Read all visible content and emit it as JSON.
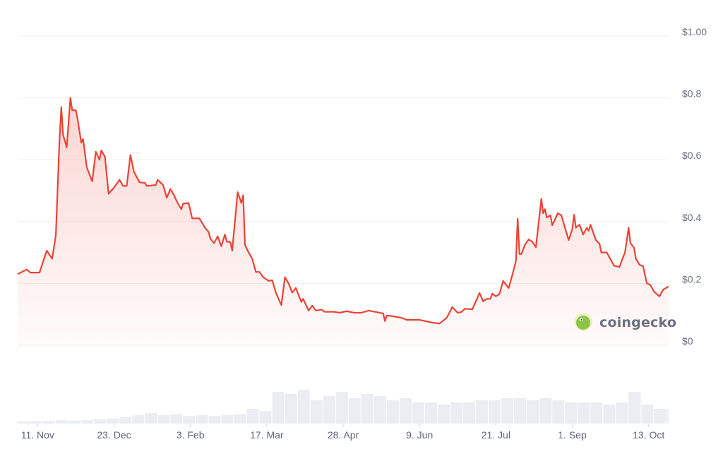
{
  "brand": {
    "name": "coingecko",
    "icon": "coingecko-gecko-logo"
  },
  "colors": {
    "line": "#ea4337",
    "fill": "#f7b3ad",
    "grid": "#eeeff2",
    "volume": "#ebedf2",
    "text": "#6b7280",
    "logo_green": "#8dc647",
    "logo_ring": "#f2f0c8"
  },
  "chart_data": {
    "type": "area",
    "title": "",
    "xlabel": "",
    "ylabel": "",
    "ylim": [
      0,
      1.0
    ],
    "xlim": [
      "2024-10-31",
      "2025-10-24"
    ],
    "grid": true,
    "legend": "none",
    "y_ticks": [
      {
        "value": 0,
        "label": "$0"
      },
      {
        "value": 0.2,
        "label": "$0.2"
      },
      {
        "value": 0.4,
        "label": "$0.4"
      },
      {
        "value": 0.6,
        "label": "$0.6"
      },
      {
        "value": 0.8,
        "label": "$0.8"
      },
      {
        "value": 1.0,
        "label": "$1.00"
      }
    ],
    "x_ticks": [
      {
        "date": "2024-11-11",
        "label": "11. Nov"
      },
      {
        "date": "2024-12-23",
        "label": "23. Dec"
      },
      {
        "date": "2025-02-03",
        "label": "3. Feb"
      },
      {
        "date": "2025-03-17",
        "label": "17. Mar"
      },
      {
        "date": "2025-04-28",
        "label": "28. Apr"
      },
      {
        "date": "2025-06-09",
        "label": "9. Jun"
      },
      {
        "date": "2025-07-21",
        "label": "21. Jul"
      },
      {
        "date": "2025-09-01",
        "label": "1. Sep"
      },
      {
        "date": "2025-10-13",
        "label": "13. Oct"
      }
    ],
    "price": [
      [
        "2024-10-31",
        0.23
      ],
      [
        "2024-11-05",
        0.245
      ],
      [
        "2024-11-07",
        0.235
      ],
      [
        "2024-11-12",
        0.235
      ],
      [
        "2024-11-16",
        0.306
      ],
      [
        "2024-11-19",
        0.28
      ],
      [
        "2024-11-21",
        0.356
      ],
      [
        "2024-11-23",
        0.66
      ],
      [
        "2024-11-24",
        0.77
      ],
      [
        "2024-11-25",
        0.68
      ],
      [
        "2024-11-27",
        0.64
      ],
      [
        "2024-11-29",
        0.8
      ],
      [
        "2024-11-30",
        0.76
      ],
      [
        "2024-12-02",
        0.76
      ],
      [
        "2024-12-03",
        0.73
      ],
      [
        "2024-12-05",
        0.655
      ],
      [
        "2024-12-06",
        0.667
      ],
      [
        "2024-12-08",
        0.575
      ],
      [
        "2024-12-11",
        0.53
      ],
      [
        "2024-12-13",
        0.626
      ],
      [
        "2024-12-15",
        0.6
      ],
      [
        "2024-12-16",
        0.63
      ],
      [
        "2024-12-18",
        0.61
      ],
      [
        "2024-12-20",
        0.49
      ],
      [
        "2024-12-23",
        0.51
      ],
      [
        "2024-12-26",
        0.535
      ],
      [
        "2024-12-28",
        0.515
      ],
      [
        "2024-12-30",
        0.515
      ],
      [
        "2025-01-01",
        0.615
      ],
      [
        "2025-01-03",
        0.56
      ],
      [
        "2025-01-06",
        0.527
      ],
      [
        "2025-01-09",
        0.525
      ],
      [
        "2025-01-10",
        0.515
      ],
      [
        "2025-01-15",
        0.518
      ],
      [
        "2025-01-16",
        0.535
      ],
      [
        "2025-01-19",
        0.518
      ],
      [
        "2025-01-21",
        0.477
      ],
      [
        "2025-01-23",
        0.505
      ],
      [
        "2025-01-25",
        0.485
      ],
      [
        "2025-01-27",
        0.46
      ],
      [
        "2025-01-29",
        0.44
      ],
      [
        "2025-01-30",
        0.458
      ],
      [
        "2025-02-02",
        0.46
      ],
      [
        "2025-02-04",
        0.41
      ],
      [
        "2025-02-08",
        0.41
      ],
      [
        "2025-02-11",
        0.38
      ],
      [
        "2025-02-13",
        0.367
      ],
      [
        "2025-02-14",
        0.345
      ],
      [
        "2025-02-16",
        0.33
      ],
      [
        "2025-02-18",
        0.352
      ],
      [
        "2025-02-20",
        0.32
      ],
      [
        "2025-02-22",
        0.358
      ],
      [
        "2025-02-23",
        0.335
      ],
      [
        "2025-02-25",
        0.333
      ],
      [
        "2025-02-26",
        0.306
      ],
      [
        "2025-03-01",
        0.495
      ],
      [
        "2025-03-03",
        0.46
      ],
      [
        "2025-03-04",
        0.485
      ],
      [
        "2025-03-05",
        0.325
      ],
      [
        "2025-03-07",
        0.3
      ],
      [
        "2025-03-09",
        0.28
      ],
      [
        "2025-03-11",
        0.237
      ],
      [
        "2025-03-13",
        0.237
      ],
      [
        "2025-03-15",
        0.22
      ],
      [
        "2025-03-18",
        0.208
      ],
      [
        "2025-03-20",
        0.21
      ],
      [
        "2025-03-22",
        0.17
      ],
      [
        "2025-03-25",
        0.13
      ],
      [
        "2025-03-27",
        0.22
      ],
      [
        "2025-03-29",
        0.2
      ],
      [
        "2025-03-31",
        0.17
      ],
      [
        "2025-04-02",
        0.185
      ],
      [
        "2025-04-05",
        0.14
      ],
      [
        "2025-04-06",
        0.15
      ],
      [
        "2025-04-09",
        0.112
      ],
      [
        "2025-04-11",
        0.128
      ],
      [
        "2025-04-13",
        0.112
      ],
      [
        "2025-04-16",
        0.115
      ],
      [
        "2025-04-18",
        0.108
      ],
      [
        "2025-04-23",
        0.108
      ],
      [
        "2025-04-26",
        0.105
      ],
      [
        "2025-04-30",
        0.11
      ],
      [
        "2025-05-04",
        0.105
      ],
      [
        "2025-05-08",
        0.105
      ],
      [
        "2025-05-12",
        0.112
      ],
      [
        "2025-05-20",
        0.103
      ],
      [
        "2025-05-21",
        0.078
      ],
      [
        "2025-05-22",
        0.096
      ],
      [
        "2025-05-24",
        0.095
      ],
      [
        "2025-05-30",
        0.089
      ],
      [
        "2025-06-02",
        0.082
      ],
      [
        "2025-06-09",
        0.082
      ],
      [
        "2025-06-16",
        0.073
      ],
      [
        "2025-06-20",
        0.07
      ],
      [
        "2025-06-24",
        0.089
      ],
      [
        "2025-06-27",
        0.123
      ],
      [
        "2025-06-30",
        0.105
      ],
      [
        "2025-07-02",
        0.107
      ],
      [
        "2025-07-04",
        0.118
      ],
      [
        "2025-07-08",
        0.116
      ],
      [
        "2025-07-12",
        0.169
      ],
      [
        "2025-07-14",
        0.142
      ],
      [
        "2025-07-16",
        0.15
      ],
      [
        "2025-07-18",
        0.15
      ],
      [
        "2025-07-19",
        0.167
      ],
      [
        "2025-07-21",
        0.158
      ],
      [
        "2025-07-23",
        0.166
      ],
      [
        "2025-07-25",
        0.208
      ],
      [
        "2025-07-28",
        0.185
      ],
      [
        "2025-07-30",
        0.226
      ],
      [
        "2025-08-01",
        0.272
      ],
      [
        "2025-08-02",
        0.409
      ],
      [
        "2025-08-03",
        0.295
      ],
      [
        "2025-08-04",
        0.295
      ],
      [
        "2025-08-06",
        0.325
      ],
      [
        "2025-08-08",
        0.342
      ],
      [
        "2025-08-10",
        0.335
      ],
      [
        "2025-08-12",
        0.317
      ],
      [
        "2025-08-15",
        0.473
      ],
      [
        "2025-08-16",
        0.427
      ],
      [
        "2025-08-17",
        0.44
      ],
      [
        "2025-08-18",
        0.413
      ],
      [
        "2025-08-20",
        0.42
      ],
      [
        "2025-08-21",
        0.388
      ],
      [
        "2025-08-22",
        0.4
      ],
      [
        "2025-08-24",
        0.427
      ],
      [
        "2025-08-26",
        0.42
      ],
      [
        "2025-08-28",
        0.38
      ],
      [
        "2025-08-30",
        0.34
      ],
      [
        "2025-09-01",
        0.375
      ],
      [
        "2025-09-02",
        0.422
      ],
      [
        "2025-09-03",
        0.38
      ],
      [
        "2025-09-05",
        0.39
      ],
      [
        "2025-09-07",
        0.358
      ],
      [
        "2025-09-09",
        0.38
      ],
      [
        "2025-09-10",
        0.37
      ],
      [
        "2025-09-11",
        0.39
      ],
      [
        "2025-09-14",
        0.34
      ],
      [
        "2025-09-16",
        0.328
      ],
      [
        "2025-09-17",
        0.3
      ],
      [
        "2025-09-20",
        0.3
      ],
      [
        "2025-09-24",
        0.257
      ],
      [
        "2025-09-27",
        0.253
      ],
      [
        "2025-09-28",
        0.27
      ],
      [
        "2025-09-30",
        0.3
      ],
      [
        "2025-10-02",
        0.38
      ],
      [
        "2025-10-03",
        0.33
      ],
      [
        "2025-10-05",
        0.315
      ],
      [
        "2025-10-06",
        0.28
      ],
      [
        "2025-10-08",
        0.26
      ],
      [
        "2025-10-10",
        0.255
      ],
      [
        "2025-10-12",
        0.2
      ],
      [
        "2025-10-14",
        0.195
      ],
      [
        "2025-10-16",
        0.173
      ],
      [
        "2025-10-19",
        0.158
      ],
      [
        "2025-10-21",
        0.18
      ],
      [
        "2025-10-24",
        0.19
      ]
    ],
    "volume_relative_weekly": [
      0.05,
      0.06,
      0.06,
      0.08,
      0.07,
      0.08,
      0.1,
      0.12,
      0.15,
      0.2,
      0.25,
      0.2,
      0.22,
      0.18,
      0.2,
      0.18,
      0.2,
      0.22,
      0.35,
      0.3,
      0.75,
      0.7,
      0.8,
      0.55,
      0.65,
      0.75,
      0.6,
      0.7,
      0.65,
      0.55,
      0.6,
      0.5,
      0.5,
      0.45,
      0.5,
      0.5,
      0.55,
      0.55,
      0.6,
      0.6,
      0.55,
      0.6,
      0.55,
      0.5,
      0.5,
      0.5,
      0.45,
      0.5,
      0.75,
      0.45,
      0.35,
      0.35
    ]
  }
}
